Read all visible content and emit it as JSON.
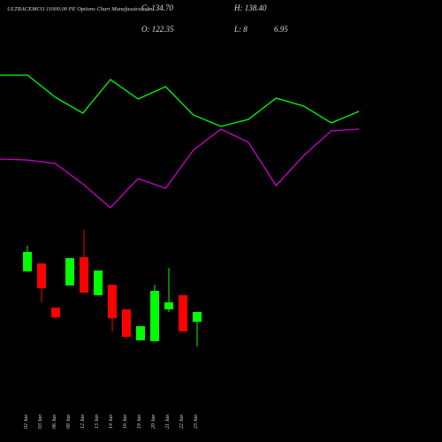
{
  "chart_data": [
    {
      "type": "candlestick",
      "title": "ULTRACEMCO 11000.00 PE Options Chart Munafasutra.com",
      "annotations": [
        "C: 134.70",
        "H: 138.40",
        "O: 122.35",
        "L: 8",
        "6.95"
      ],
      "categories": [
        "02 Jan",
        "03 Jan",
        "06 Jan",
        "09 Jan",
        "12 Jan",
        "13 Jan",
        "14 Jan",
        "16 Jan",
        "19 Jan",
        "20 Jan",
        "21 Jan",
        "22 Jan",
        "23 Jan"
      ],
      "open": [
        193,
        202,
        152,
        177,
        209,
        166,
        178,
        150,
        115,
        114,
        150,
        166,
        136
      ],
      "high": [
        222,
        202,
        152,
        208,
        240,
        194,
        178,
        150,
        131,
        178,
        197,
        166,
        147
      ],
      "low": [
        193,
        158,
        139,
        177,
        169,
        166,
        125,
        117,
        115,
        114,
        147,
        125,
        108
      ],
      "close": [
        215,
        174,
        141,
        208,
        169,
        194,
        140,
        119,
        131,
        171,
        158,
        125,
        147
      ],
      "up_color": "#00ff00",
      "down_color": "#ff0000",
      "ylim": [
        0,
        500
      ]
    },
    {
      "type": "line",
      "categories": [
        null,
        null,
        null,
        null,
        null,
        null,
        null,
        null,
        null,
        null,
        null,
        null,
        null,
        null
      ],
      "series": [
        {
          "color": "#00ff00",
          "values": [
            415,
            415,
            390,
            372,
            410,
            388,
            402,
            370,
            357,
            365,
            389,
            380,
            361,
            374
          ]
        },
        {
          "color": "#cc00cc",
          "values": [
            320,
            319,
            315,
            292,
            265,
            298,
            287,
            330,
            354,
            339,
            290,
            324,
            352,
            354
          ]
        }
      ],
      "ylim": [
        0,
        500
      ]
    }
  ]
}
